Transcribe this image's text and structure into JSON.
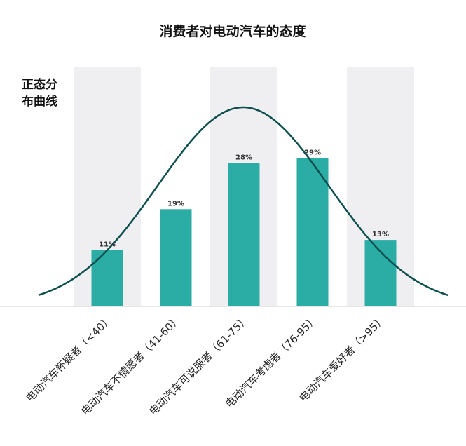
{
  "chart_data": {
    "type": "bar",
    "title": "消费者对电动汽车的态度",
    "annotation": [
      "正态分",
      "布曲线"
    ],
    "categories": [
      "电动汽车怀疑者（<40）",
      "电动汽车不情愿者（41-60）",
      "电动汽车可说服者（61-75）",
      "电动汽车考虑者（76-95）",
      "电动汽车爱好者（>95）"
    ],
    "values": [
      11,
      19,
      28,
      29,
      13
    ],
    "value_labels": [
      "11%",
      "19%",
      "28%",
      "29%",
      "13%"
    ],
    "ylim": [
      0,
      42
    ],
    "curve": "normal-distribution overlay",
    "colors": {
      "bar": "#2bada6",
      "curve": "#0d4f4f",
      "band": "#efeff1",
      "axis": "#e6e6e6"
    }
  }
}
